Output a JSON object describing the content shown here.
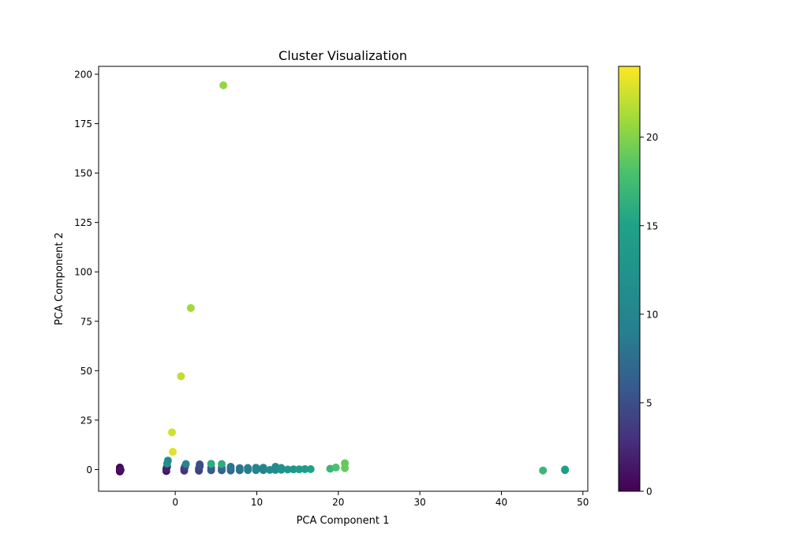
{
  "chart_data": {
    "type": "scatter",
    "title": "Cluster Visualization",
    "xlabel": "PCA Component 1",
    "ylabel": "PCA Component 2",
    "xlim": [
      -9.4,
      50.6
    ],
    "ylim": [
      -11,
      204
    ],
    "x_ticks": [
      0,
      10,
      20,
      30,
      40,
      50
    ],
    "y_ticks": [
      0,
      25,
      50,
      75,
      100,
      125,
      150,
      175,
      200
    ],
    "grid": false,
    "colorbar": {
      "colormap": "viridis",
      "range": [
        0,
        24
      ],
      "ticks": [
        0,
        5,
        10,
        15,
        20
      ]
    },
    "points": [
      {
        "x": -6.8,
        "y": -1.0,
        "c": 0
      },
      {
        "x": -6.8,
        "y": -0.5,
        "c": 0
      },
      {
        "x": -6.8,
        "y": 0.0,
        "c": 0
      },
      {
        "x": -6.8,
        "y": 0.5,
        "c": 0
      },
      {
        "x": -6.8,
        "y": 1.0,
        "c": 0
      },
      {
        "x": -6.7,
        "y": -0.2,
        "c": 1
      },
      {
        "x": -1.1,
        "y": -0.8,
        "c": 1
      },
      {
        "x": -1.1,
        "y": 0.3,
        "c": 2
      },
      {
        "x": -1.0,
        "y": 1.5,
        "c": 2
      },
      {
        "x": -1.0,
        "y": 3.0,
        "c": 12
      },
      {
        "x": -0.9,
        "y": 4.5,
        "c": 11
      },
      {
        "x": 1.1,
        "y": -0.6,
        "c": 3
      },
      {
        "x": 1.1,
        "y": 0.5,
        "c": 3
      },
      {
        "x": 1.2,
        "y": 1.5,
        "c": 4
      },
      {
        "x": 1.3,
        "y": 2.8,
        "c": 10
      },
      {
        "x": 2.9,
        "y": -0.6,
        "c": 4
      },
      {
        "x": 2.9,
        "y": 0.5,
        "c": 4
      },
      {
        "x": 3.0,
        "y": 1.6,
        "c": 5
      },
      {
        "x": 3.0,
        "y": 2.6,
        "c": 5
      },
      {
        "x": 4.4,
        "y": -0.4,
        "c": 6
      },
      {
        "x": 4.4,
        "y": 0.8,
        "c": 6
      },
      {
        "x": 4.4,
        "y": 2.9,
        "c": 16
      },
      {
        "x": 5.7,
        "y": -0.4,
        "c": 6
      },
      {
        "x": 5.7,
        "y": 0.8,
        "c": 7
      },
      {
        "x": 5.7,
        "y": 2.8,
        "c": 16
      },
      {
        "x": 6.8,
        "y": -0.5,
        "c": 7
      },
      {
        "x": 6.8,
        "y": 0.6,
        "c": 7
      },
      {
        "x": 6.8,
        "y": 1.4,
        "c": 8
      },
      {
        "x": 7.9,
        "y": -0.4,
        "c": 8
      },
      {
        "x": 7.9,
        "y": 0.7,
        "c": 8
      },
      {
        "x": 8.9,
        "y": -0.3,
        "c": 9
      },
      {
        "x": 8.9,
        "y": 0.8,
        "c": 9
      },
      {
        "x": 9.9,
        "y": -0.3,
        "c": 9
      },
      {
        "x": 9.9,
        "y": 0.9,
        "c": 10
      },
      {
        "x": 10.8,
        "y": -0.3,
        "c": 10
      },
      {
        "x": 10.8,
        "y": 0.9,
        "c": 10
      },
      {
        "x": 11.6,
        "y": -0.2,
        "c": 11
      },
      {
        "x": 12.3,
        "y": -0.2,
        "c": 11
      },
      {
        "x": 12.3,
        "y": 1.4,
        "c": 11
      },
      {
        "x": 13.0,
        "y": -0.1,
        "c": 12
      },
      {
        "x": 13.0,
        "y": 0.8,
        "c": 12
      },
      {
        "x": 13.8,
        "y": 0.0,
        "c": 13
      },
      {
        "x": 14.5,
        "y": 0.1,
        "c": 13
      },
      {
        "x": 15.2,
        "y": 0.1,
        "c": 14
      },
      {
        "x": 15.9,
        "y": 0.2,
        "c": 14
      },
      {
        "x": 16.6,
        "y": 0.2,
        "c": 15
      },
      {
        "x": 19.0,
        "y": 0.4,
        "c": 17
      },
      {
        "x": 19.7,
        "y": 1.0,
        "c": 18
      },
      {
        "x": 20.8,
        "y": 3.2,
        "c": 19
      },
      {
        "x": 20.8,
        "y": 0.7,
        "c": 19
      },
      {
        "x": -0.3,
        "y": 9.0,
        "c": 23
      },
      {
        "x": -0.4,
        "y": 18.8,
        "c": 22.5
      },
      {
        "x": 0.7,
        "y": 47.2,
        "c": 22
      },
      {
        "x": 1.9,
        "y": 81.7,
        "c": 21
      },
      {
        "x": 5.9,
        "y": 194.4,
        "c": 20.5
      },
      {
        "x": 45.1,
        "y": -0.5,
        "c": 17
      },
      {
        "x": 47.8,
        "y": -0.3,
        "c": 14.5
      },
      {
        "x": 47.8,
        "y": 0.0,
        "c": 14.5
      }
    ]
  }
}
